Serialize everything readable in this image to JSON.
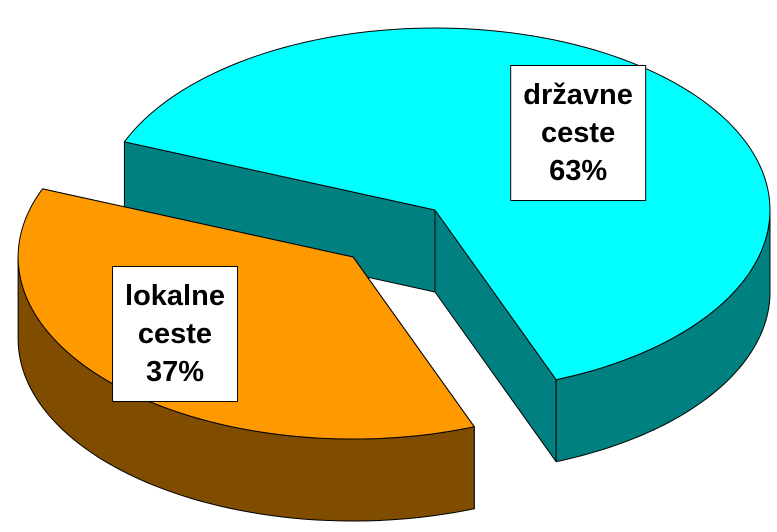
{
  "chart_data": {
    "type": "pie",
    "categories": [
      "državne ceste",
      "lokalne ceste"
    ],
    "values": [
      63,
      37
    ],
    "value_labels": [
      "63%",
      "37%"
    ],
    "colors": [
      "#00ffff",
      "#ff9900"
    ]
  }
}
